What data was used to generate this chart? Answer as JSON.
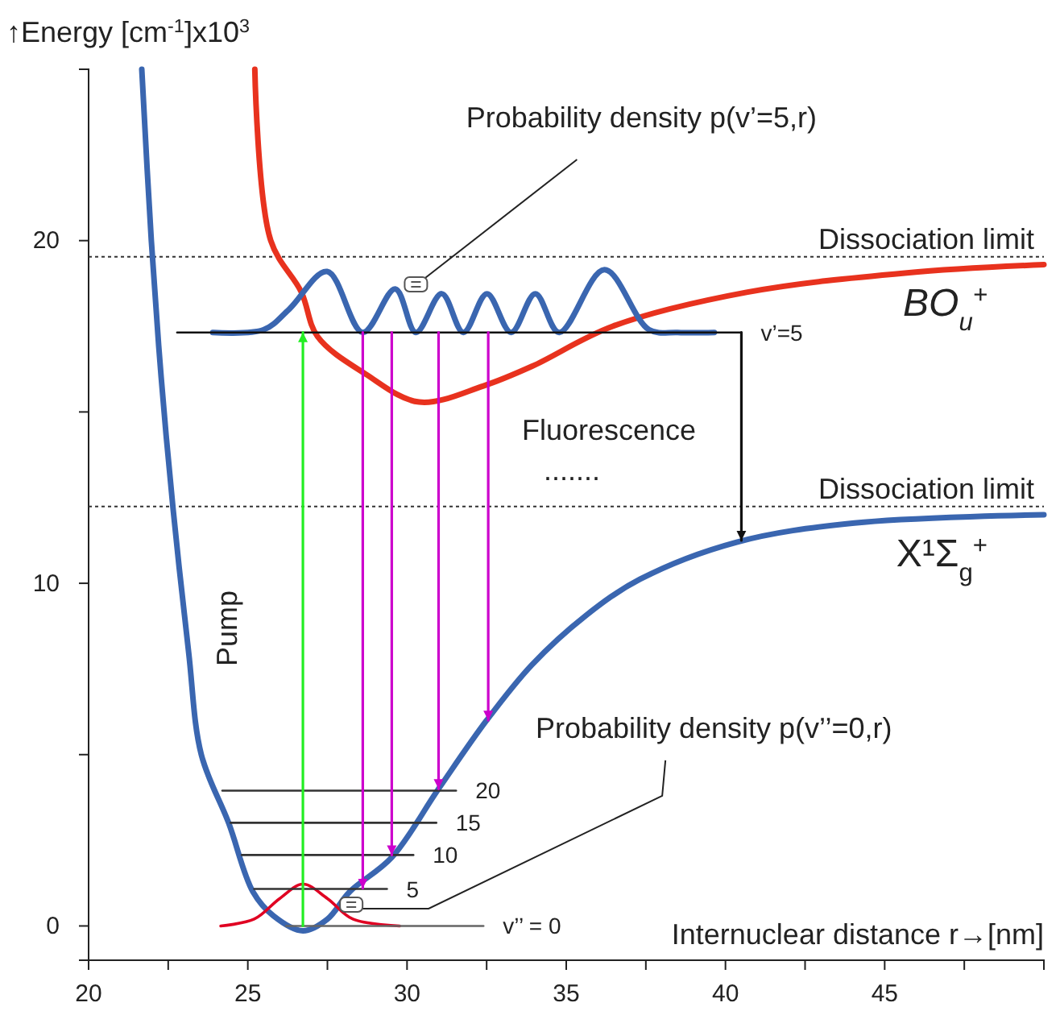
{
  "chart_data": {
    "type": "line",
    "xlabel": "Internuclear distance r→[nm]",
    "ylabel": "↑Energy [cm$^{-1}$]x10$^{3}$",
    "xlim": [
      20,
      50
    ],
    "xticks": [
      20,
      {
        "value": 22.5,
        "label": null
      },
      25,
      {
        "value": 27.5,
        "label": null
      },
      30,
      {
        "value": 32.5,
        "label": null
      },
      35,
      {
        "value": 37.5,
        "label": null
      },
      40,
      {
        "value": 42.5,
        "label": null
      },
      45,
      {
        "value": 47.5,
        "label": null
      },
      {
        "value": 50,
        "label": null
      }
    ],
    "ylim": [
      -1,
      25
    ],
    "yticks": [
      0,
      {
        "value": 5,
        "label": null
      },
      10,
      {
        "value": 15,
        "label": null
      },
      20,
      {
        "value": 25,
        "label": null
      }
    ],
    "grid": false,
    "series": [
      {
        "name": "X¹Σ$_{g}$$^{+}$",
        "color": "#3a66b0",
        "x": [
          21.67,
          21.97,
          22.28,
          22.65,
          23.14,
          23.54,
          24.4,
          25.16,
          25.8,
          26.73,
          27.5,
          28.2,
          29.52,
          30.99,
          32.5,
          33.92,
          35.59,
          37.32,
          40.35,
          44.05,
          50
        ],
        "values": [
          25,
          20,
          16,
          12.2,
          8,
          5,
          3,
          1,
          0.3,
          -0.14,
          0.2,
          1,
          2,
          4,
          6,
          7.62,
          9.04,
          10.12,
          11.2,
          11.76,
          12.0
        ]
      },
      {
        "name": "BO$_{u}$$^{+}$",
        "color": "#e8321e",
        "x": [
          25.22,
          25.72,
          26.68,
          27.19,
          28.71,
          30.38,
          32.4,
          33.92,
          36.46,
          40.66,
          45.7,
          50
        ],
        "values": [
          25,
          20,
          18.5,
          17.2,
          16.1,
          15.29,
          15.76,
          16.33,
          17.5,
          18.49,
          19.06,
          19.3
        ]
      },
      {
        "color": "#3a66b0",
        "x": [
          23.9,
          25.5,
          26.3,
          27.49,
          28.61,
          29.63,
          30.28,
          31.09,
          31.77,
          32.51,
          33.27,
          34.03,
          34.78,
          36.2,
          37.6,
          38.5,
          39.65
        ],
        "values": [
          17.32,
          17.4,
          18.0,
          19.1,
          17.32,
          18.59,
          17.32,
          18.45,
          17.32,
          18.45,
          17.32,
          18.45,
          17.32,
          19.15,
          17.4,
          17.32,
          17.32
        ]
      },
      {
        "color": "#e00022",
        "x": [
          24.15,
          25.2,
          26.0,
          26.73,
          27.5,
          28.3,
          29.77
        ],
        "values": [
          0,
          0.2,
          0.8,
          1.22,
          0.8,
          0.2,
          0
        ]
      },
      {
        "name": "v’=5",
        "color": "#111111",
        "x": [
          22.78,
          40.5
        ],
        "values": [
          17.32,
          17.32
        ]
      },
      {
        "name": "v’’ = 0",
        "color": "#666666",
        "x": [
          26.2,
          32.4
        ],
        "values": [
          0,
          0
        ]
      },
      {
        "name": "5",
        "color": "#333333",
        "x": [
          25.2,
          29.37
        ],
        "values": [
          1.08,
          1.08
        ]
      },
      {
        "name": "10",
        "color": "#333333",
        "x": [
          24.81,
          30.2
        ],
        "values": [
          2.07,
          2.07
        ]
      },
      {
        "name": "15",
        "color": "#333333",
        "x": [
          24.46,
          30.92
        ],
        "values": [
          3.01,
          3.01
        ]
      },
      {
        "name": "20",
        "color": "#333333",
        "x": [
          24.2,
          31.54
        ],
        "values": [
          3.95,
          3.95
        ]
      },
      {
        "color": "#22ee22",
        "x": [
          26.73,
          26.73
        ],
        "values": [
          0,
          17.32
        ]
      },
      {
        "color": "#cc00cc",
        "x": [
          28.61,
          28.61
        ],
        "values": [
          17.32,
          1.1
        ]
      },
      {
        "color": "#cc00cc",
        "x": [
          29.52,
          29.52
        ],
        "values": [
          17.32,
          2.07
        ]
      },
      {
        "color": "#cc00cc",
        "x": [
          30.99,
          30.99
        ],
        "values": [
          17.32,
          4.0
        ]
      },
      {
        "color": "#cc00cc",
        "x": [
          32.55,
          32.55
        ],
        "values": [
          17.32,
          6.0
        ]
      },
      {
        "color": "#111111",
        "x": [
          40.5,
          40.5
        ],
        "values": [
          17.32,
          11.25
        ]
      }
    ],
    "ref_lines": [
      {
        "axis": "y",
        "value": 19.53,
        "label": "Dissociation limit",
        "color": "#333333",
        "line_style": "dotted"
      },
      {
        "axis": "y",
        "value": 12.24,
        "label": "Dissociation limit",
        "color": "#333333",
        "line_style": "dotted"
      }
    ],
    "annotations": [
      {
        "text": "Probability density p(v’=5,r)",
        "x": 30.28,
        "y": 18.7
      },
      {
        "text": "Probability density p(v’’=0,r)",
        "x": 28.25,
        "y": 0.6
      },
      "Pump",
      "Fluorescence",
      "......."
    ]
  }
}
